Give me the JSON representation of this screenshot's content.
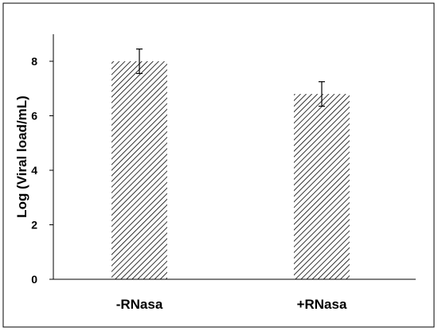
{
  "chart_data": {
    "type": "bar",
    "title": "",
    "xlabel": "",
    "ylabel": "Log (Viral load/mL)",
    "ylim": [
      0,
      9
    ],
    "yticks": [
      0,
      2,
      4,
      6,
      8
    ],
    "categories": [
      "-RNasa",
      "+RNasa"
    ],
    "values": [
      8.0,
      6.8
    ],
    "errors": [
      0.45,
      0.45
    ],
    "grid": false,
    "legend": "none",
    "bar_fill": "diagonal-hatch",
    "colors": {
      "border": "#000000",
      "hatch": "#000000",
      "background": "#ffffff"
    }
  }
}
